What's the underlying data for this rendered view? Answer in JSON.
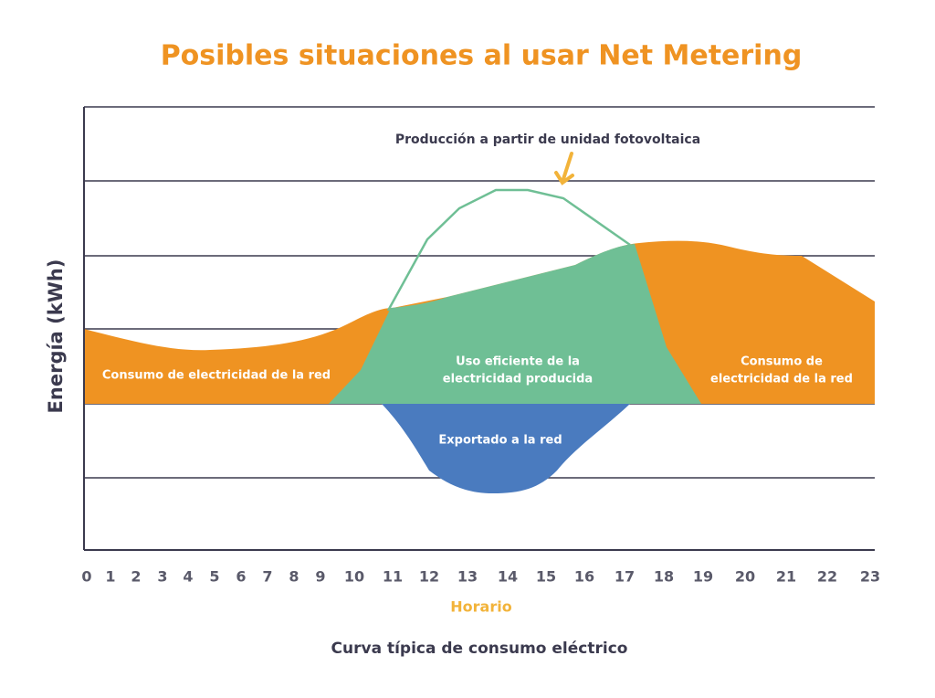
{
  "header": {
    "title": "Posibles situaciones al usar Net Metering"
  },
  "diagram": {
    "y_axis_label": "Energía (kWh)",
    "x_axis_label": "Horario",
    "x_labels": [
      0,
      1,
      2,
      3,
      4,
      5,
      6,
      7,
      8,
      9,
      10,
      11,
      12,
      13,
      14,
      15,
      16,
      17,
      18,
      19,
      20,
      21,
      22,
      23
    ],
    "production_label": "Producción a partir de unidad fotovoltaica",
    "areas": [
      {
        "lines": [
          "Consumo de electricidad de la red"
        ]
      },
      {
        "lines": [
          "Uso eficiente de la",
          "electricidad producida"
        ]
      },
      {
        "lines": [
          "Consumo de",
          "electricidad de la red"
        ]
      },
      {
        "lines": [
          "Exportado a la red"
        ]
      }
    ],
    "caption": "Curva típica de consumo eléctrico"
  }
}
